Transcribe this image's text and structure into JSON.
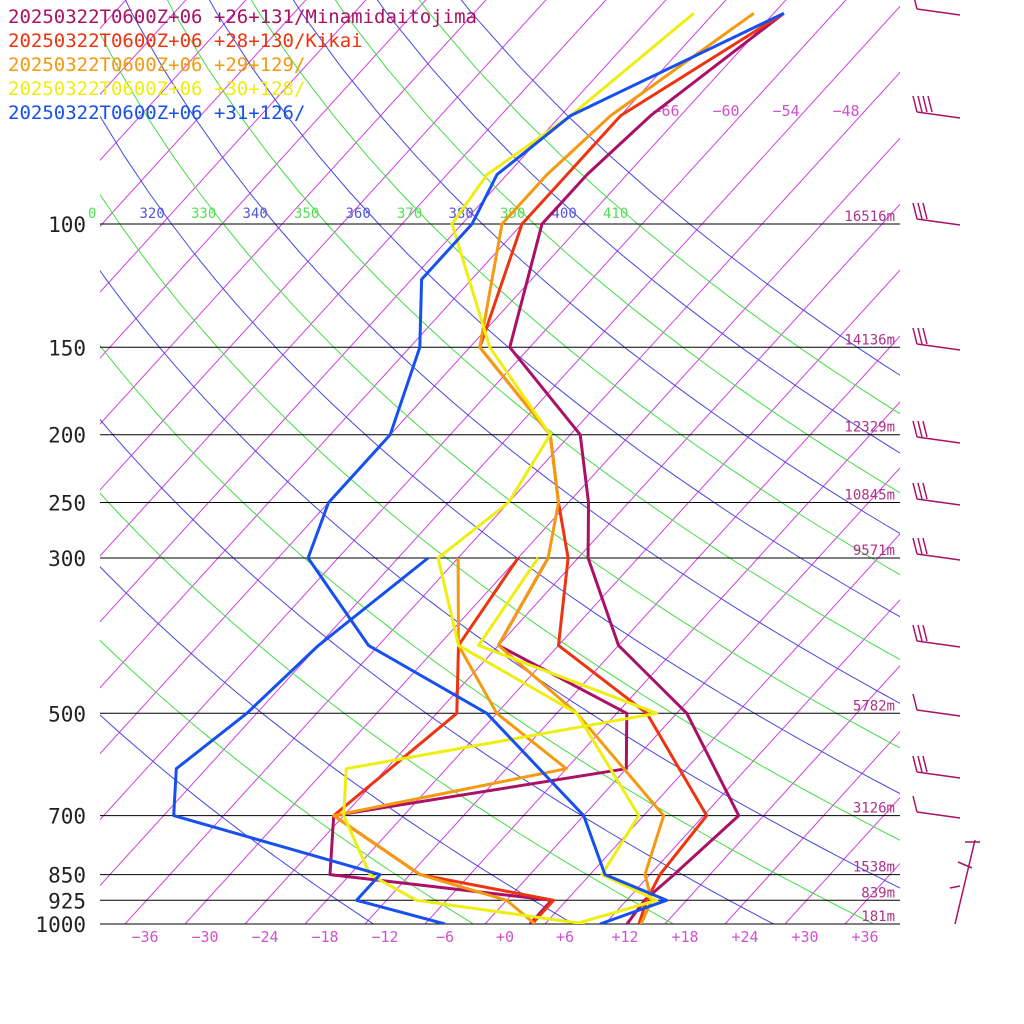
{
  "chart_data": {
    "type": "line",
    "title": "",
    "xlabel": "",
    "ylabel": "",
    "axes": {
      "pressure_levels": [
        100,
        150,
        200,
        250,
        300,
        500,
        700,
        850,
        925,
        1000
      ],
      "pressure_tick_labels": [
        "100",
        "150",
        "200",
        "250",
        "300",
        "500",
        "700",
        "850",
        "925",
        "1000"
      ],
      "temperature_ticks": [
        -36,
        -30,
        -24,
        -18,
        -12,
        -6,
        0,
        6,
        12,
        18,
        24,
        30,
        36
      ],
      "temperature_tick_labels": [
        "−36",
        "−30",
        "−24",
        "−18",
        "−12",
        "−6",
        "+0",
        "+6",
        "+12",
        "+18",
        "+24",
        "+30",
        "+36"
      ],
      "upper_temperature_labels": [
        "−66",
        "−60",
        "−54",
        "−48"
      ],
      "height_labels": [
        {
          "pressure": 100,
          "text": "16516m"
        },
        {
          "pressure": 150,
          "text": "14136m"
        },
        {
          "pressure": 200,
          "text": "12329m"
        },
        {
          "pressure": 250,
          "text": "10845m"
        },
        {
          "pressure": 300,
          "text": "9571m"
        },
        {
          "pressure": 500,
          "text": "5782m"
        },
        {
          "pressure": 700,
          "text": "3126m"
        },
        {
          "pressure": 850,
          "text": "1538m"
        },
        {
          "pressure": 925,
          "text": "839m"
        },
        {
          "pressure": 1000,
          "text": "181m"
        }
      ],
      "theta_labels": [
        {
          "text": "0",
          "color": "#55dd55"
        },
        {
          "text": "320",
          "color": "#5555dd"
        },
        {
          "text": "330",
          "color": "#55dd55"
        },
        {
          "text": "340",
          "color": "#5555dd"
        },
        {
          "text": "350",
          "color": "#55dd55"
        },
        {
          "text": "360",
          "color": "#5555dd"
        },
        {
          "text": "370",
          "color": "#55dd55"
        },
        {
          "text": "380",
          "color": "#5555dd"
        },
        {
          "text": "390",
          "color": "#55dd55"
        },
        {
          "text": "400",
          "color": "#5555dd"
        },
        {
          "text": "410",
          "color": "#55dd55"
        }
      ]
    },
    "legend": [
      {
        "text": "20250322T0600Z+06 +26+131/Minamidaitojima",
        "color": "#aa1166"
      },
      {
        "text": "20250322T0600Z+06 +28+130/Kikai",
        "color": "#ee3311"
      },
      {
        "text": "20250322T0600Z+06 +29+129/",
        "color": "#f39a10"
      },
      {
        "text": "20250322T0600Z+06 +30+128/",
        "color": "#eeee10"
      },
      {
        "text": "20250322T0600Z+06 +31+126/",
        "color": "#1650ee"
      }
    ],
    "series": [
      {
        "color": "#aa1166",
        "temperature": [
          [
            1000,
            12.2
          ],
          [
            925,
            11.8
          ],
          [
            850,
            12.4
          ],
          [
            700,
            13.5
          ],
          [
            500,
            -1
          ],
          [
            400,
            -14
          ],
          [
            300,
            -25
          ],
          [
            250,
            -30
          ],
          [
            200,
            -37
          ],
          [
            150,
            -52
          ],
          [
            100,
            -60
          ],
          [
            85,
            -60
          ],
          [
            70,
            -59
          ],
          [
            50,
            -55
          ]
        ],
        "dewpoint": [
          [
            1000,
            2.5
          ],
          [
            925,
            2.5
          ],
          [
            850,
            -22
          ],
          [
            700,
            -27
          ],
          [
            600,
            -2
          ],
          [
            500,
            -7
          ],
          [
            400,
            -26
          ],
          [
            300,
            -29
          ]
        ]
      },
      {
        "color": "#ee3311",
        "temperature": [
          [
            1000,
            13.4
          ],
          [
            925,
            12
          ],
          [
            850,
            11
          ],
          [
            700,
            10.3
          ],
          [
            500,
            -5
          ],
          [
            400,
            -20
          ],
          [
            300,
            -27
          ],
          [
            250,
            -33
          ],
          [
            200,
            -40
          ],
          [
            150,
            -55
          ],
          [
            100,
            -62
          ],
          [
            85,
            -62
          ],
          [
            70,
            -62
          ],
          [
            50,
            -55
          ]
        ],
        "dewpoint": [
          [
            1000,
            2.7
          ],
          [
            925,
            2.7
          ],
          [
            850,
            -13
          ],
          [
            700,
            -27
          ],
          [
            500,
            -24
          ],
          [
            400,
            -30
          ],
          [
            300,
            -32
          ]
        ]
      },
      {
        "color": "#f39a10",
        "temperature": [
          [
            1000,
            13.6
          ],
          [
            925,
            12.5
          ],
          [
            850,
            9.5
          ],
          [
            700,
            6
          ],
          [
            500,
            -12
          ],
          [
            400,
            -26
          ],
          [
            300,
            -29
          ],
          [
            250,
            -33
          ],
          [
            200,
            -40
          ],
          [
            150,
            -55
          ],
          [
            100,
            -64
          ],
          [
            85,
            -64
          ],
          [
            70,
            -63
          ],
          [
            50,
            -58
          ]
        ],
        "dewpoint": [
          [
            1000,
            3
          ],
          [
            925,
            -2
          ],
          [
            850,
            -13
          ],
          [
            700,
            -27
          ],
          [
            600,
            -8
          ],
          [
            500,
            -20
          ],
          [
            400,
            -30
          ],
          [
            300,
            -38
          ]
        ]
      },
      {
        "color": "#eeee10",
        "temperature": [
          [
            1000,
            7
          ],
          [
            925,
            13
          ],
          [
            850,
            5.2
          ],
          [
            700,
            3.5
          ],
          [
            500,
            -12
          ],
          [
            400,
            -30
          ],
          [
            300,
            -40
          ],
          [
            250,
            -38
          ],
          [
            200,
            -40
          ],
          [
            150,
            -54
          ],
          [
            100,
            -69
          ],
          [
            85,
            -70
          ],
          [
            70,
            -67
          ],
          [
            50,
            -64
          ]
        ],
        "dewpoint": [
          [
            1000,
            8
          ],
          [
            925,
            -11
          ],
          [
            850,
            -18
          ],
          [
            700,
            -26
          ],
          [
            600,
            -30
          ],
          [
            500,
            -4
          ],
          [
            400,
            -28
          ],
          [
            300,
            -30
          ]
        ]
      },
      {
        "color": "#1650ee",
        "temperature": [
          [
            1000,
            9.5
          ],
          [
            925,
            14
          ],
          [
            850,
            5.5
          ],
          [
            700,
            -2
          ],
          [
            500,
            -21
          ],
          [
            400,
            -39
          ],
          [
            300,
            -53
          ],
          [
            250,
            -56
          ],
          [
            200,
            -56
          ],
          [
            150,
            -61
          ],
          [
            120,
            -67
          ],
          [
            100,
            -67
          ],
          [
            85,
            -69
          ],
          [
            70,
            -67
          ],
          [
            50,
            -55
          ]
        ],
        "dewpoint": [
          [
            1000,
            -6
          ],
          [
            925,
            -17
          ],
          [
            850,
            -17
          ],
          [
            700,
            -43
          ],
          [
            600,
            -47
          ],
          [
            500,
            -45
          ],
          [
            400,
            -44
          ],
          [
            300,
            -41
          ]
        ]
      }
    ]
  }
}
